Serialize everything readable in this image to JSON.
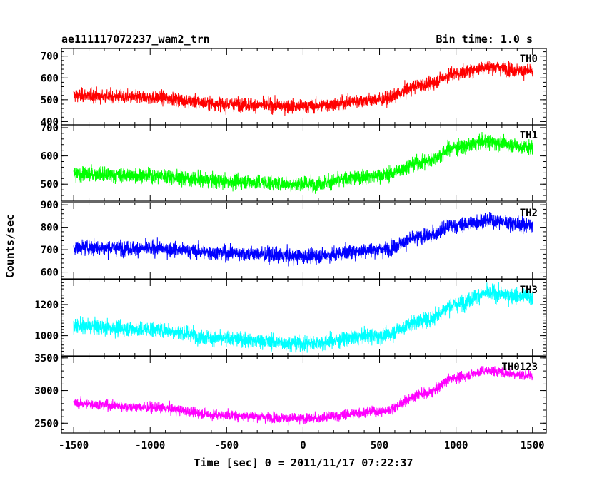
{
  "header": {
    "left": "ae111117072237_wam2_trn",
    "right": "Bin time: 1.0 s"
  },
  "chart_data": {
    "type": "line",
    "title": "ae111117072237_wam2_trn",
    "bin_time": "Bin time: 1.0 s",
    "xlabel": "Time [sec] 0 = 2011/11/17 07:22:37",
    "ylabel": "Counts/sec",
    "xlim": [
      -1580,
      1590
    ],
    "x_ticks": [
      -1500,
      -1000,
      -500,
      0,
      500,
      1000,
      1500
    ],
    "x_range": [
      -1500,
      1500
    ],
    "grid": false,
    "panels": [
      {
        "name": "TH0",
        "color": "#ff0000",
        "ylim": [
          385,
          735
        ],
        "y_ticks": [
          400,
          500,
          600,
          700
        ],
        "trend": {
          "x": [
            -1500,
            -1000,
            -500,
            0,
            500,
            800,
            1000,
            1200,
            1500
          ],
          "y": [
            520,
            510,
            480,
            470,
            500,
            570,
            620,
            650,
            630
          ]
        },
        "noise_sigma": 28
      },
      {
        "name": "TH1",
        "color": "#00ff00",
        "ylim": [
          440,
          710
        ],
        "y_ticks": [
          500,
          600,
          700
        ],
        "trend": {
          "x": [
            -1500,
            -1000,
            -500,
            0,
            500,
            800,
            1000,
            1200,
            1500
          ],
          "y": [
            535,
            530,
            510,
            500,
            530,
            580,
            630,
            650,
            630
          ]
        },
        "noise_sigma": 24
      },
      {
        "name": "TH2",
        "color": "#0000ff",
        "ylim": [
          570,
          910
        ],
        "y_ticks": [
          600,
          700,
          800,
          900
        ],
        "trend": {
          "x": [
            -1500,
            -1000,
            -500,
            0,
            500,
            800,
            1000,
            1200,
            1500
          ],
          "y": [
            710,
            705,
            685,
            670,
            700,
            760,
            810,
            830,
            810
          ]
        },
        "noise_sigma": 30
      },
      {
        "name": "TH3",
        "color": "#00ffff",
        "ylim": [
          870,
          1360
        ],
        "y_ticks": [
          1000,
          1200
        ],
        "trend": {
          "x": [
            -1500,
            -1000,
            -500,
            0,
            500,
            800,
            1000,
            1200,
            1500
          ],
          "y": [
            1060,
            1040,
            980,
            950,
            1000,
            1100,
            1200,
            1270,
            1250
          ]
        },
        "noise_sigma": 45
      },
      {
        "name": "TH0123",
        "color": "#ff00ff",
        "ylim": [
          2350,
          3520
        ],
        "y_ticks": [
          2500,
          3000,
          3500
        ],
        "trend": {
          "x": [
            -1500,
            -1000,
            -500,
            0,
            500,
            800,
            1000,
            1200,
            1500
          ],
          "y": [
            2800,
            2740,
            2620,
            2570,
            2680,
            2950,
            3200,
            3300,
            3230
          ]
        },
        "noise_sigma": 70
      }
    ]
  }
}
